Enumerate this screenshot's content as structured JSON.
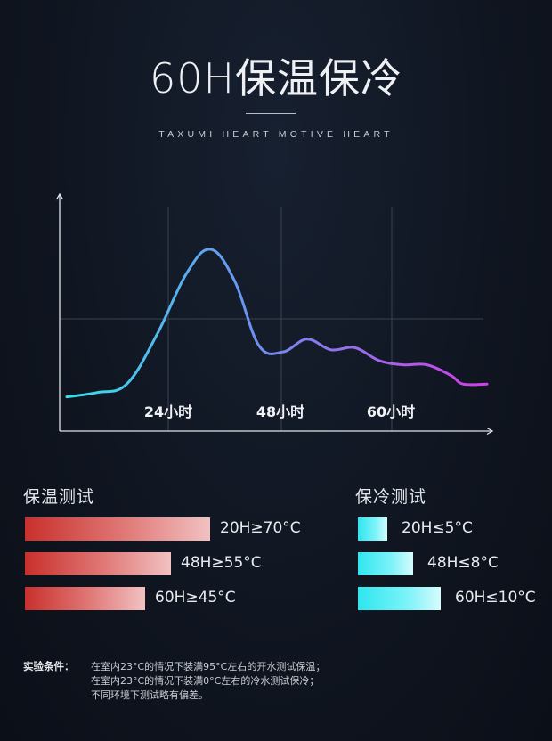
{
  "header": {
    "title": "60H保温保冷",
    "subtitle": "TAXUMI HEART MOTIVE HEART"
  },
  "chart_data": {
    "type": "line",
    "title": "",
    "xlabel": "",
    "ylabel": "",
    "x_tick_labels": [
      "24小时",
      "48小时",
      "60小时"
    ],
    "x": [
      0,
      5,
      10,
      15,
      20,
      24,
      28,
      32,
      36,
      40,
      44,
      48,
      52,
      56,
      60,
      64,
      66,
      70
    ],
    "y": [
      16,
      18,
      22,
      45,
      74,
      85,
      70,
      40,
      37,
      43,
      38,
      39,
      33,
      31,
      31,
      26,
      22,
      22
    ],
    "xlim": [
      -2,
      72
    ],
    "ylim": [
      0,
      105
    ],
    "grid": true,
    "colors": [
      "#37e0ea",
      "#6f8ff0",
      "#d23ee6"
    ]
  },
  "warm_test": {
    "title": "保温测试",
    "items": [
      {
        "label": "20H≥70°C",
        "fraction": 1.0
      },
      {
        "label": "48H≥55°C",
        "fraction": 0.79
      },
      {
        "label": "60H≥45°C",
        "fraction": 0.65
      }
    ]
  },
  "cold_test": {
    "title": "保冷测试",
    "items": [
      {
        "label": "20H≤5°C",
        "fraction": 0.35
      },
      {
        "label": "48H≤8°C",
        "fraction": 0.67
      },
      {
        "label": "60H≤10°C",
        "fraction": 1.0
      }
    ]
  },
  "notes": {
    "label": "实验条件：",
    "lines": [
      "在室内23°C的情况下装满95°C左右的开水测试保温；",
      "在室内23°C的情况下装满0°C左右的冷水测试保冷；",
      "不同环境下测试略有偏差。"
    ]
  }
}
